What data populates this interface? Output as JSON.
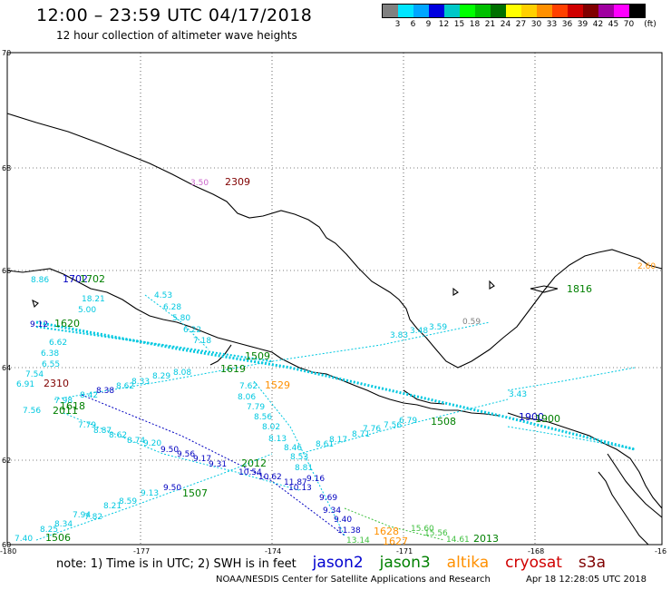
{
  "header": {
    "title": "12:00 – 23:59 UTC 04/17/2018",
    "subtitle": "12 hour collection of altimeter wave heights"
  },
  "legend": {
    "unit": "(ft)",
    "colors": [
      "#808080",
      "#00e5ff",
      "#00a6ff",
      "#0000e0",
      "#00c8c8",
      "#00ff00",
      "#00c000",
      "#007000",
      "#ffff00",
      "#ffd000",
      "#ff9000",
      "#ff4000",
      "#d00000",
      "#800000",
      "#a000a0",
      "#ff00ff",
      "#000000"
    ],
    "labels": [
      "3",
      "6",
      "9",
      "12",
      "15",
      "18",
      "21",
      "24",
      "27",
      "30",
      "33",
      "36",
      "39",
      "42",
      "45",
      "70"
    ]
  },
  "axes": {
    "lat_labels": [
      "70",
      "68",
      "66",
      "64",
      "62",
      "60"
    ],
    "lon_labels": [
      "-180",
      "-177",
      "-174",
      "-171",
      "-168",
      "-16"
    ]
  },
  "track_labels": [
    {
      "text": "8.86",
      "color": "#00c8e0"
    },
    {
      "text": "1702",
      "color": "#0000c0"
    },
    {
      "text": "1702",
      "color": "#008000"
    },
    {
      "text": "18.21",
      "color": "#00c8e0"
    },
    {
      "text": "4.53",
      "color": "#00c8e0"
    },
    {
      "text": "5.00",
      "color": "#00c8e0"
    },
    {
      "text": "6.28",
      "color": "#00c8e0"
    },
    {
      "text": "5.80",
      "color": "#00c8e0"
    },
    {
      "text": "6.22",
      "color": "#00c8e0"
    },
    {
      "text": "7.18",
      "color": "#00c8e0"
    },
    {
      "text": "9.12",
      "color": "#0000c0"
    },
    {
      "text": "1620",
      "color": "#008000"
    },
    {
      "text": "6.62",
      "color": "#00c8e0"
    },
    {
      "text": "6.38",
      "color": "#00c8e0"
    },
    {
      "text": "6.55",
      "color": "#00c8e0"
    },
    {
      "text": "7.54",
      "color": "#00c8e0"
    },
    {
      "text": "6.91",
      "color": "#00c8e0"
    },
    {
      "text": "2310",
      "color": "#800000"
    },
    {
      "text": "8.38",
      "color": "#0000c0"
    },
    {
      "text": "7.98",
      "color": "#00c8e0"
    },
    {
      "text": "8.42",
      "color": "#00c8e0"
    },
    {
      "text": "8.62",
      "color": "#00c8e0"
    },
    {
      "text": "8.33",
      "color": "#00c8e0"
    },
    {
      "text": "8.29",
      "color": "#00c8e0"
    },
    {
      "text": "8.08",
      "color": "#00c8e0"
    },
    {
      "text": "7.56",
      "color": "#00c8e0"
    },
    {
      "text": "1618",
      "color": "#008000"
    },
    {
      "text": "2011",
      "color": "#008000"
    },
    {
      "text": "7.79",
      "color": "#00c8e0"
    },
    {
      "text": "8.87",
      "color": "#00c8e0"
    },
    {
      "text": "8.62",
      "color": "#00c8e0"
    },
    {
      "text": "8.74",
      "color": "#00c8e0"
    },
    {
      "text": "9.20",
      "color": "#00c8e0"
    },
    {
      "text": "9.50",
      "color": "#0000c0"
    },
    {
      "text": "9.56",
      "color": "#0000c0"
    },
    {
      "text": "9.17",
      "color": "#0000c0"
    },
    {
      "text": "9.31",
      "color": "#0000c0"
    },
    {
      "text": "10.54",
      "color": "#0000c0"
    },
    {
      "text": "10.62",
      "color": "#0000c0"
    },
    {
      "text": "11.87",
      "color": "#0000c0"
    },
    {
      "text": "9.16",
      "color": "#0000c0"
    },
    {
      "text": "10.13",
      "color": "#0000c0"
    },
    {
      "text": "9.69",
      "color": "#0000c0"
    },
    {
      "text": "9.34",
      "color": "#0000c0"
    },
    {
      "text": "9.40",
      "color": "#0000c0"
    },
    {
      "text": "11.38",
      "color": "#0000c0"
    },
    {
      "text": "2012",
      "color": "#008000"
    },
    {
      "text": "1507",
      "color": "#008000"
    },
    {
      "text": "9.50",
      "color": "#0000c0"
    },
    {
      "text": "9.13",
      "color": "#00c8e0"
    },
    {
      "text": "8.59",
      "color": "#00c8e0"
    },
    {
      "text": "8.21",
      "color": "#00c8e0"
    },
    {
      "text": "7.82",
      "color": "#00c8e0"
    },
    {
      "text": "7.94",
      "color": "#00c8e0"
    },
    {
      "text": "8.34",
      "color": "#00c8e0"
    },
    {
      "text": "8.25",
      "color": "#00c8e0"
    },
    {
      "text": "7.40",
      "color": "#00c8e0"
    },
    {
      "text": "1506",
      "color": "#008000"
    },
    {
      "text": "1619",
      "color": "#008000"
    },
    {
      "text": "7.62",
      "color": "#00c8e0"
    },
    {
      "text": "8.06",
      "color": "#00c8e0"
    },
    {
      "text": "7.79",
      "color": "#00c8e0"
    },
    {
      "text": "8.56",
      "color": "#00c8e0"
    },
    {
      "text": "8.02",
      "color": "#00c8e0"
    },
    {
      "text": "8.13",
      "color": "#00c8e0"
    },
    {
      "text": "8.46",
      "color": "#00c8e0"
    },
    {
      "text": "8.53",
      "color": "#00c8e0"
    },
    {
      "text": "8.81",
      "color": "#00c8e0"
    },
    {
      "text": "8.61",
      "color": "#00c8e0"
    },
    {
      "text": "8.17",
      "color": "#00c8e0"
    },
    {
      "text": "8.71",
      "color": "#00c8e0"
    },
    {
      "text": "7.76",
      "color": "#00c8e0"
    },
    {
      "text": "7.56",
      "color": "#00c8e0"
    },
    {
      "text": "6.79",
      "color": "#00c8e0"
    },
    {
      "text": "1529",
      "color": "#ff9000"
    },
    {
      "text": "1509",
      "color": "#008000"
    },
    {
      "text": "1508",
      "color": "#008000"
    },
    {
      "text": "3.83",
      "color": "#00c8e0"
    },
    {
      "text": "3.48",
      "color": "#00c8e0"
    },
    {
      "text": "3.59",
      "color": "#00c8e0"
    },
    {
      "text": "0.59",
      "color": "#808080"
    },
    {
      "text": "1816",
      "color": "#008000"
    },
    {
      "text": "1900",
      "color": "#0000c0"
    },
    {
      "text": "1900",
      "color": "#008000"
    },
    {
      "text": "3.43",
      "color": "#00c8e0"
    },
    {
      "text": "2309",
      "color": "#800000"
    },
    {
      "text": "3.50",
      "color": "#cc66cc"
    },
    {
      "text": "1628",
      "color": "#ff9000"
    },
    {
      "text": "1627",
      "color": "#ff9000"
    },
    {
      "text": "13.14",
      "color": "#40c040"
    },
    {
      "text": "15.56",
      "color": "#40c040"
    },
    {
      "text": "15.60",
      "color": "#40c040"
    },
    {
      "text": "14.61",
      "color": "#40c040"
    },
    {
      "text": "2013",
      "color": "#008000"
    },
    {
      "text": "2.60",
      "color": "#ff9000"
    }
  ],
  "footer": {
    "note": "note: 1) Time is in UTC; 2) SWH is in feet",
    "satellites": [
      {
        "name": "jason2",
        "color": "#0000d0"
      },
      {
        "name": "jason3",
        "color": "#008000"
      },
      {
        "name": "altika",
        "color": "#ff9000"
      },
      {
        "name": "cryosat",
        "color": "#d00000"
      },
      {
        "name": "s3a",
        "color": "#800000"
      }
    ],
    "credit": "NOAA/NESDIS Center for Satellite Applications and Research",
    "timestamp": "Apr 18 12:28:05 UTC 2018"
  }
}
